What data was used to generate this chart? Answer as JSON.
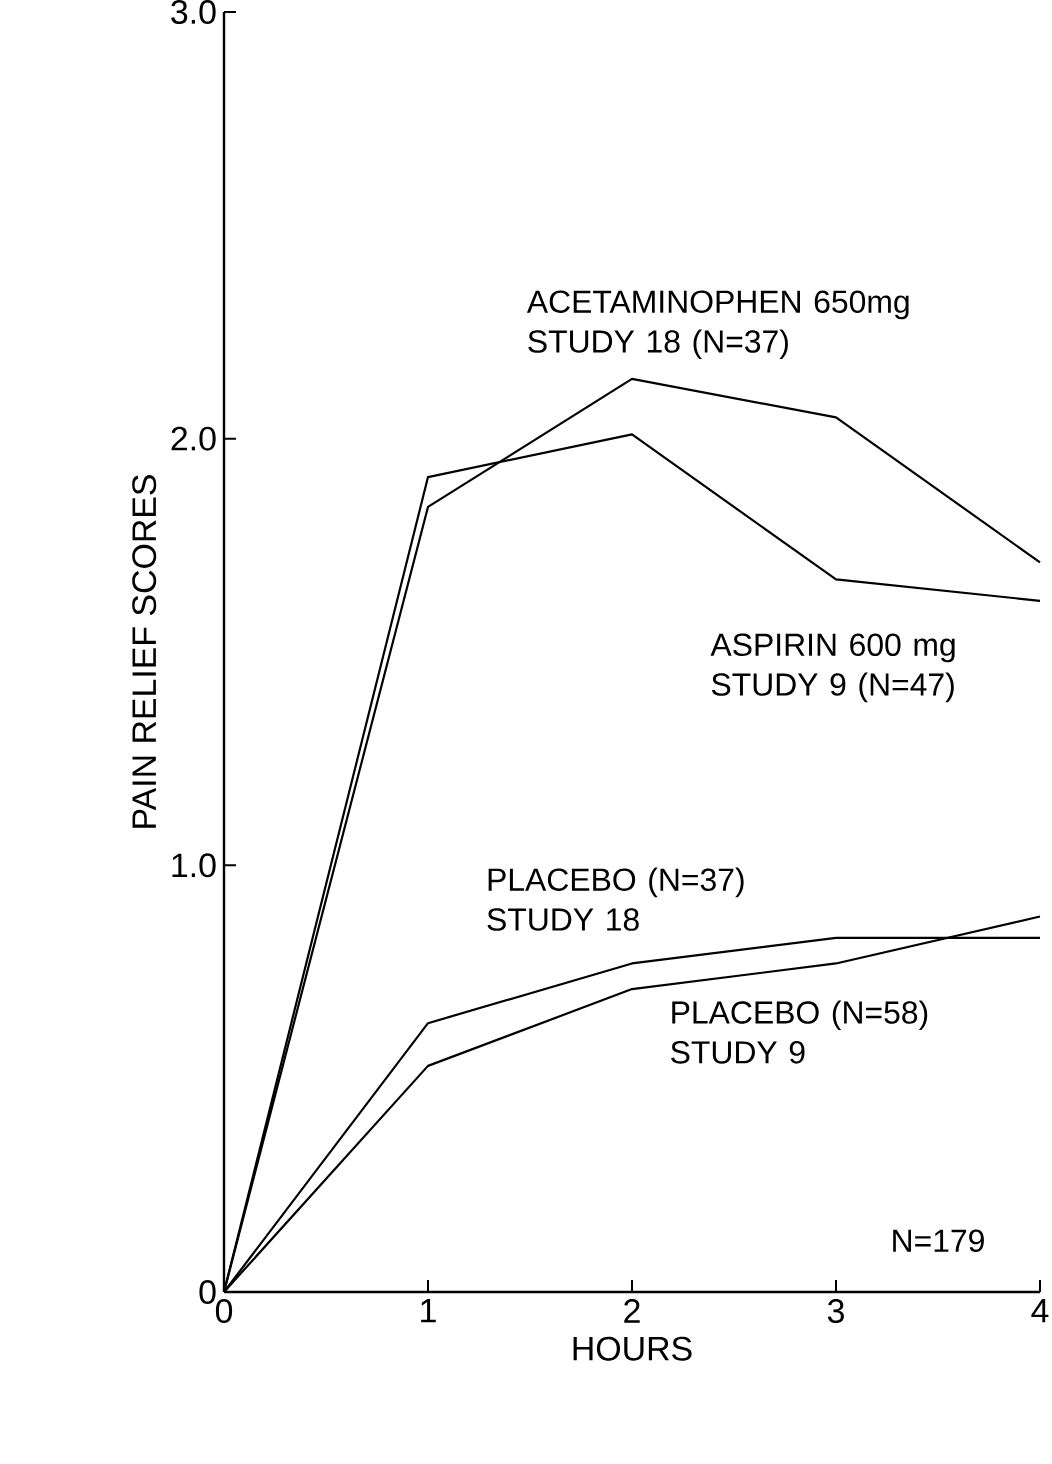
{
  "chart_data": {
    "type": "line",
    "xlabel": "HOURS",
    "ylabel": "PAIN RELIEF SCORES",
    "x": [
      0,
      1,
      2,
      3,
      4
    ],
    "series": [
      {
        "name": "ACETAMINOPHEN 650mg STUDY 18 (N=37)",
        "color": "#000000",
        "values": [
          0,
          1.84,
          2.14,
          2.05,
          1.71
        ]
      },
      {
        "name": "ASPIRIN 600 mg STUDY 9 (N=47)",
        "color": "#000000",
        "values": [
          0,
          1.91,
          2.01,
          1.67,
          1.62
        ]
      },
      {
        "name": "PLACEBO (N=37) STUDY 18",
        "color": "#000000",
        "values": [
          0,
          0.63,
          0.77,
          0.83,
          0.83
        ]
      },
      {
        "name": "PLACEBO (N=58) STUDY 9",
        "color": "#000000",
        "values": [
          0,
          0.53,
          0.71,
          0.77,
          0.88
        ]
      }
    ],
    "annotations": [
      "N=179"
    ],
    "xlim": [
      0,
      4
    ],
    "ylim": [
      0,
      3.0
    ],
    "xticks": [
      0,
      1,
      2,
      3,
      4
    ],
    "yticks": [
      0,
      {
        "value": 1,
        "label": "1.0"
      },
      {
        "value": 2,
        "label": "2.0"
      },
      {
        "value": 3,
        "label": "3.0"
      }
    ],
    "grid": false,
    "marker": "none",
    "line_style": "solid"
  }
}
